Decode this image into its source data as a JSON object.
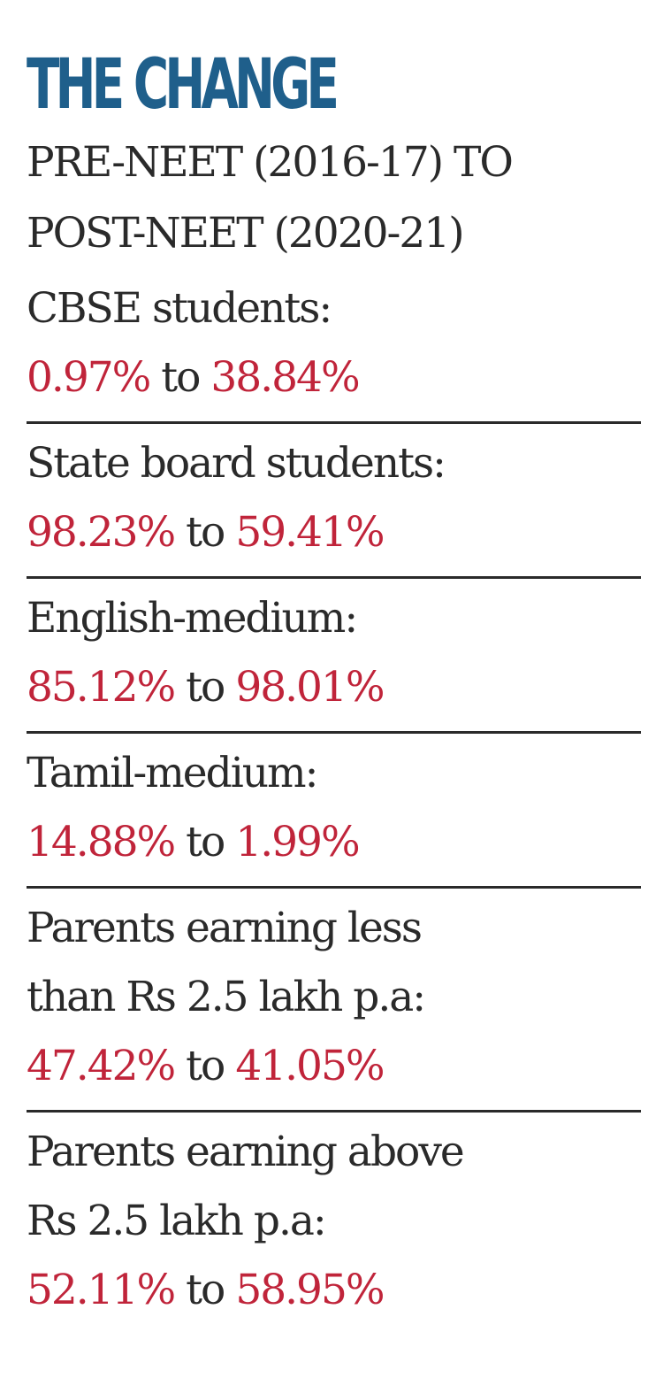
{
  "title": "THE CHANGE",
  "subtitle": {
    "line1": "PRE-NEET (2016-17) TO",
    "line2": "POST-NEET (2020-21)"
  },
  "connector": "to",
  "colors": {
    "title": "#1f5f8b",
    "label": "#2a2a2a",
    "value": "#c0243a",
    "rule": "#2a2a2a"
  },
  "items": [
    {
      "label_lines": [
        "CBSE students:"
      ],
      "from": "0.97%",
      "to": "38.84%"
    },
    {
      "label_lines": [
        "State board students:"
      ],
      "from": "98.23%",
      "to": "59.41%"
    },
    {
      "label_lines": [
        "English-medium:"
      ],
      "from": "85.12%",
      "to": "98.01%"
    },
    {
      "label_lines": [
        "Tamil-medium:"
      ],
      "from": "14.88%",
      "to": "1.99%"
    },
    {
      "label_lines": [
        "Parents earning less",
        "than Rs 2.5 lakh p.a:"
      ],
      "from": "47.42%",
      "to": "41.05%"
    },
    {
      "label_lines": [
        "Parents earning above",
        "Rs 2.5 lakh p.a:"
      ],
      "from": "52.11%",
      "to": "58.95%"
    }
  ]
}
